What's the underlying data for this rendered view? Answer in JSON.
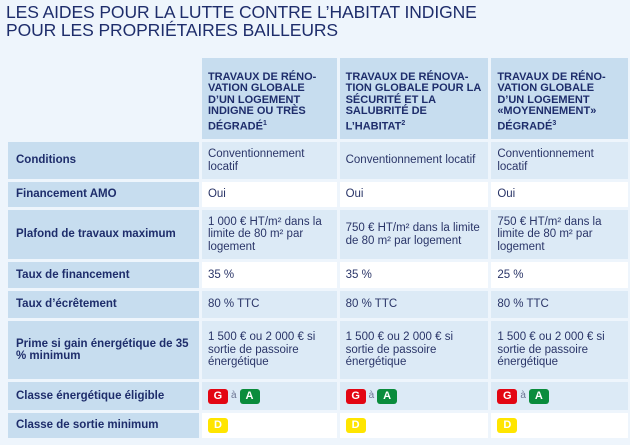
{
  "title": {
    "line1": "LES AIDES POUR LA LUTTE CONTRE L’HABITAT INDIGNE",
    "line2": "POUR LES PROPRIÉTAIRES BAILLEURS"
  },
  "columns": [
    {
      "label": "TRAVAUX DE RÉNO-VATION GLOBALE D’UN LOGEMENT INDIGNE OU TRÈS DÉGRADÉ",
      "note": "1"
    },
    {
      "label": "TRAVAUX DE RÉNOVA-TION GLOBALE POUR LA SÉCURITÉ ET LA SALUBRITÉ DE L’HABITAT",
      "note": "2"
    },
    {
      "label": "TRAVAUX DE RÉNO-VATION GLOBALE D’UN LOGEMENT «MOYENNEMENT» DÉGRADÉ",
      "note": "3"
    }
  ],
  "rows": [
    {
      "label": "Conditions",
      "values": [
        "Conventionnement locatif",
        "Conventionnement locatif",
        "Conventionnement locatif"
      ]
    },
    {
      "label": "Financement AMO",
      "values": [
        "Oui",
        "Oui",
        "Oui"
      ]
    },
    {
      "label": "Plafond de travaux maximum",
      "values": [
        "1 000 € HT/m² dans la limite de 80 m² par logement",
        "750 € HT/m² dans la limite de 80 m² par logement",
        "750 € HT/m² dans la limite de 80 m² par logement"
      ]
    },
    {
      "label": "Taux de financement",
      "values": [
        "35 %",
        "35 %",
        "25 %"
      ]
    },
    {
      "label": "Taux d’écrêtement",
      "values": [
        "80 % TTC",
        "80 % TTC",
        "80 % TTC"
      ]
    },
    {
      "label": "Prime si gain énergétique de 35 % minimum",
      "values": [
        "1 500 € ou 2 000 € si sortie de passoire énergétique",
        "1 500 € ou 2 000 € si sortie de passoire énergétique",
        "1 500 € ou 2 000 € si sortie de passoire énergétique"
      ]
    }
  ],
  "eligible": {
    "label": "Classe énergétique éligible",
    "from": "G",
    "to_word": "à",
    "to": "A"
  },
  "exit": {
    "label": "Classe de sortie minimum",
    "class": "D"
  },
  "colors": {
    "G": "#e30613",
    "A": "#0a8c3c",
    "D": "#ffe500"
  }
}
